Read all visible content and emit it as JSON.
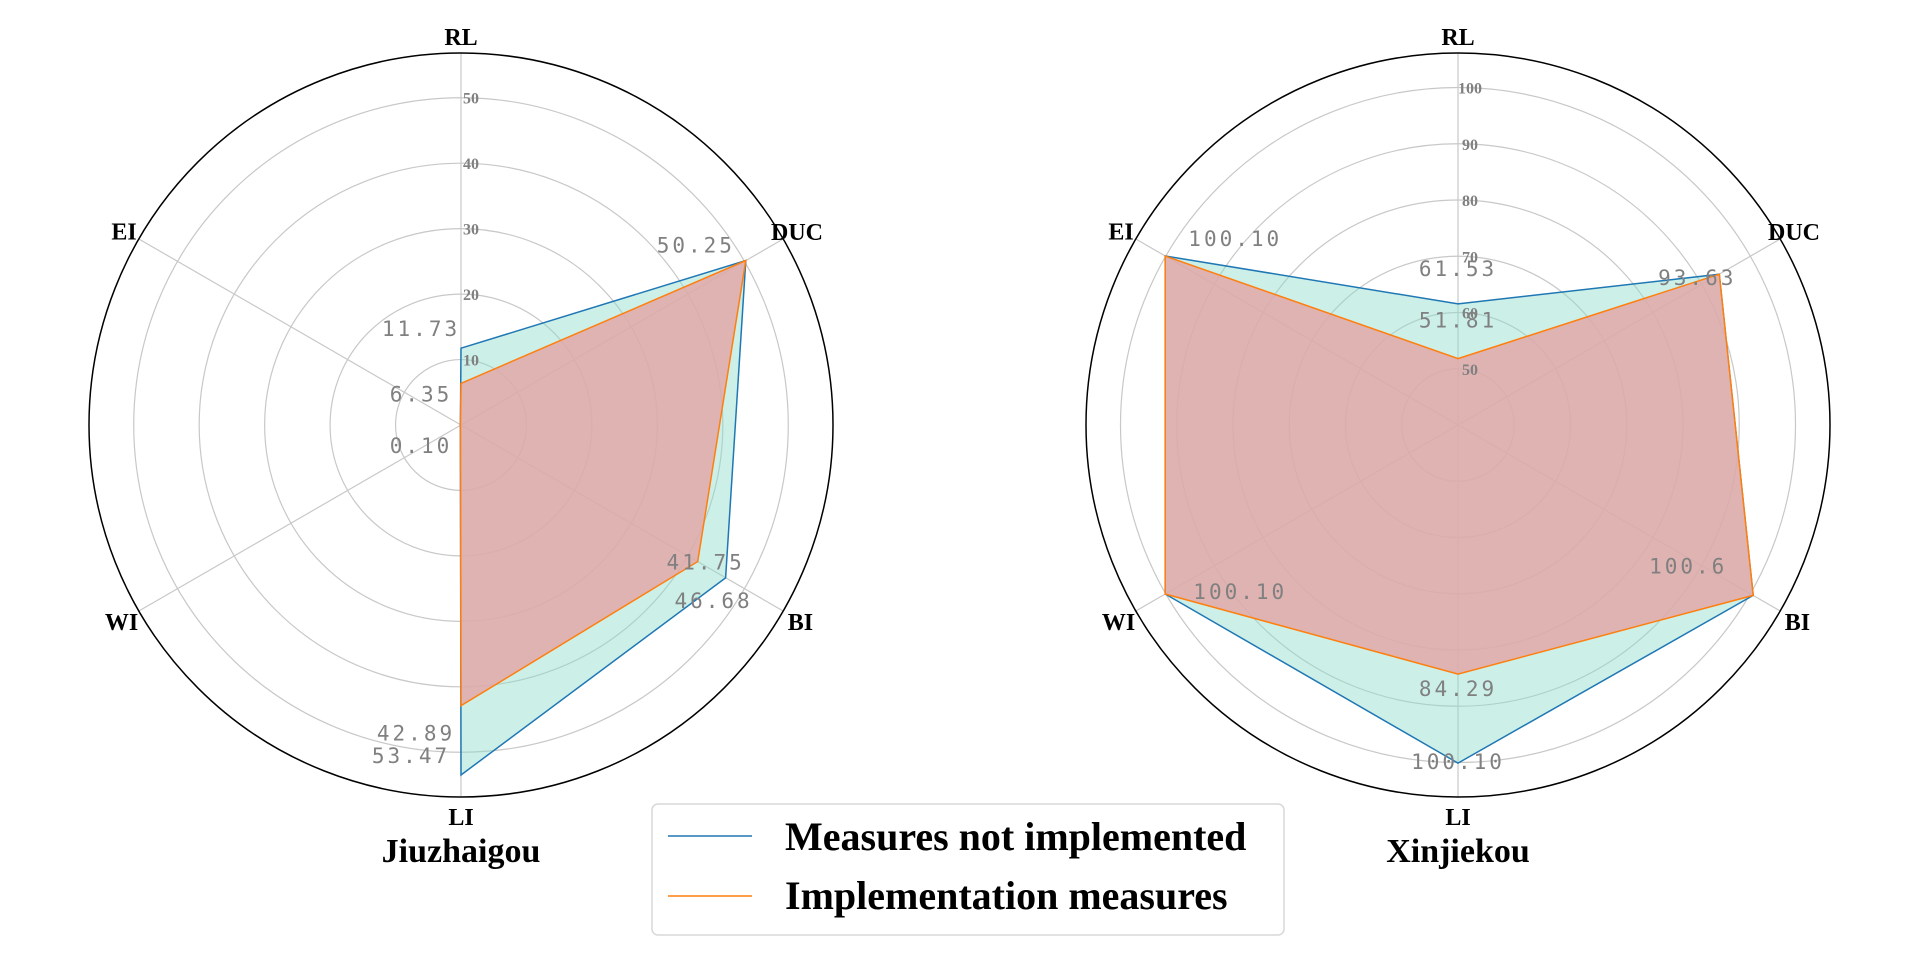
{
  "colors": {
    "series_not_implemented_line": "#1f77b4",
    "series_not_implemented_fill": "#8fdccd",
    "series_implemented_line": "#ff7f0e",
    "series_implemented_fill": "#e0a8a8",
    "grid": "#c8c8c8",
    "frame": "#000000",
    "label_gray": "#808080"
  },
  "legend": {
    "items": [
      "Measures not implemented",
      "Implementation measures"
    ]
  },
  "chart_data": [
    {
      "type": "radar",
      "title": "Jiuzhaigou",
      "axes": [
        "RL",
        "DUC",
        "BI",
        "LI",
        "WI",
        "EI"
      ],
      "r_ticks": [
        10,
        20,
        30,
        40,
        50
      ],
      "r_range": [
        0,
        55
      ],
      "series": [
        {
          "name": "Measures not implemented",
          "values": [
            11.73,
            50.25,
            46.68,
            53.47,
            0.1,
            0.1
          ]
        },
        {
          "name": "Implementation measures",
          "values": [
            6.35,
            50.25,
            41.75,
            42.89,
            0.1,
            0.1
          ]
        }
      ],
      "data_labels": [
        "11.73",
        "6.35",
        "0.10",
        "50.25",
        "41.75",
        "46.68",
        "42.89",
        "53.47"
      ]
    },
    {
      "type": "radar",
      "title": "Xinjiekou",
      "axes": [
        "RL",
        "DUC",
        "BI",
        "LI",
        "WI",
        "EI"
      ],
      "r_ticks": [
        50,
        60,
        70,
        80,
        90,
        100
      ],
      "r_range": [
        40,
        104
      ],
      "series": [
        {
          "name": "Measures not implemented",
          "values": [
            61.53,
            93.63,
            100.6,
            100.1,
            100.1,
            100.1
          ]
        },
        {
          "name": "Implementation measures",
          "values": [
            51.81,
            93.63,
            100.6,
            84.29,
            100.1,
            100.1
          ]
        }
      ],
      "data_labels": [
        "61.53",
        "51.81",
        "93.63",
        "100.10",
        "100.6",
        "100.10",
        "84.29",
        "100.10"
      ]
    }
  ]
}
